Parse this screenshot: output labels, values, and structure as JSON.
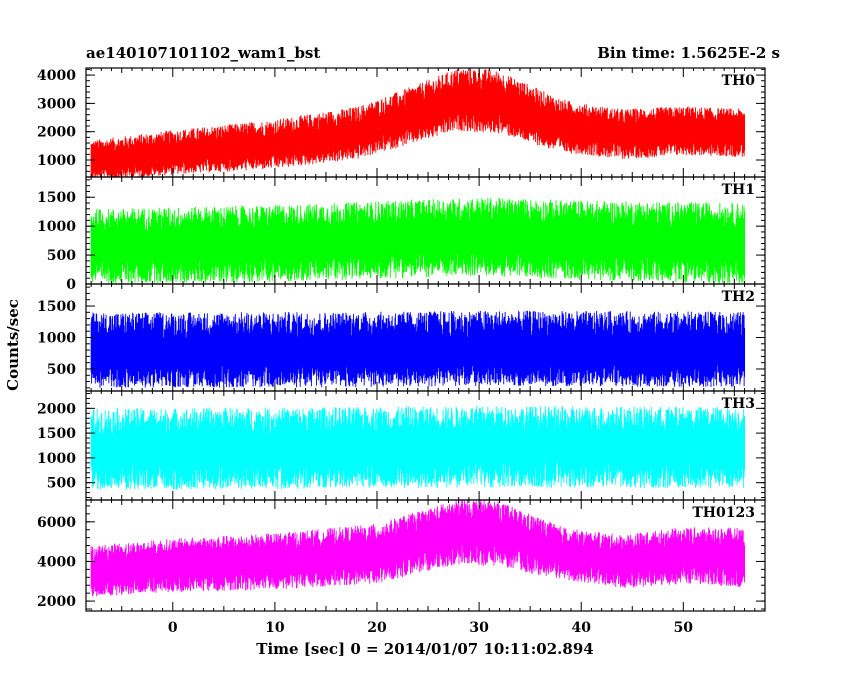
{
  "header": {
    "title": "ae140107101102_wam1_bst",
    "bin_time": "Bin time: 1.5625E-2 s"
  },
  "chart_data": {
    "type": "line",
    "title": "ae140107101102_wam1_bst",
    "xlabel": "Time [sec] 0 = 2014/01/07 10:11:02.894",
    "ylabel": "Counts/sec",
    "xlim": [
      -8.5,
      58
    ],
    "x_range": [
      -8,
      56
    ],
    "x_ticks": [
      0,
      10,
      20,
      30,
      40,
      50
    ],
    "grid": false,
    "panels": [
      {
        "name": "TH0",
        "color": "#ff0000",
        "ylim": [
          400,
          4250
        ],
        "y_ticks": [
          1000,
          2000,
          3000,
          4000
        ],
        "profile": [
          [
            -8,
            900
          ],
          [
            0,
            1200
          ],
          [
            10,
            1500
          ],
          [
            18,
            1900
          ],
          [
            24,
            2600
          ],
          [
            28,
            3100
          ],
          [
            32,
            3000
          ],
          [
            38,
            2200
          ],
          [
            44,
            1900
          ],
          [
            50,
            2000
          ],
          [
            56,
            1900
          ]
        ],
        "noise_up": [
          [
            -8,
            800
          ],
          [
            20,
            1000
          ],
          [
            30,
            1200
          ],
          [
            40,
            900
          ],
          [
            56,
            900
          ]
        ],
        "noise_down": [
          [
            -8,
            650
          ],
          [
            20,
            900
          ],
          [
            30,
            1100
          ],
          [
            40,
            900
          ],
          [
            56,
            800
          ]
        ]
      },
      {
        "name": "TH1",
        "color": "#00ff00",
        "ylim": [
          0,
          1850
        ],
        "y_ticks": [
          0,
          500,
          1000,
          1500
        ],
        "profile": [
          [
            -8,
            650
          ],
          [
            10,
            700
          ],
          [
            20,
            760
          ],
          [
            30,
            820
          ],
          [
            40,
            760
          ],
          [
            56,
            700
          ]
        ],
        "noise_up": [
          [
            -8,
            650
          ],
          [
            56,
            700
          ]
        ],
        "noise_down": [
          [
            -8,
            650
          ],
          [
            56,
            700
          ]
        ]
      },
      {
        "name": "TH2",
        "color": "#0000ff",
        "ylim": [
          150,
          1850
        ],
        "y_ticks": [
          500,
          1000,
          1500
        ],
        "profile": [
          [
            -8,
            750
          ],
          [
            20,
            760
          ],
          [
            30,
            780
          ],
          [
            56,
            760
          ]
        ],
        "noise_up": [
          [
            -8,
            650
          ],
          [
            56,
            650
          ]
        ],
        "noise_down": [
          [
            -8,
            550
          ],
          [
            56,
            550
          ]
        ]
      },
      {
        "name": "TH3",
        "color": "#00ffff",
        "ylim": [
          150,
          2350
        ],
        "y_ticks": [
          500,
          1000,
          1500,
          2000
        ],
        "profile": [
          [
            -8,
            1150
          ],
          [
            20,
            1180
          ],
          [
            30,
            1200
          ],
          [
            56,
            1180
          ]
        ],
        "noise_up": [
          [
            -8,
            850
          ],
          [
            56,
            850
          ]
        ],
        "noise_down": [
          [
            -8,
            800
          ],
          [
            56,
            800
          ]
        ]
      },
      {
        "name": "TH0123",
        "color": "#ff00ff",
        "ylim": [
          1500,
          7100
        ],
        "y_ticks": [
          2000,
          4000,
          6000
        ],
        "profile": [
          [
            -8,
            3500
          ],
          [
            0,
            3800
          ],
          [
            10,
            4000
          ],
          [
            20,
            4400
          ],
          [
            28,
            5500
          ],
          [
            32,
            5400
          ],
          [
            38,
            4400
          ],
          [
            44,
            4000
          ],
          [
            50,
            4300
          ],
          [
            56,
            4200
          ]
        ],
        "noise_up": [
          [
            -8,
            1300
          ],
          [
            20,
            1500
          ],
          [
            30,
            1700
          ],
          [
            40,
            1300
          ],
          [
            56,
            1500
          ]
        ],
        "noise_down": [
          [
            -8,
            1300
          ],
          [
            20,
            1500
          ],
          [
            30,
            1700
          ],
          [
            40,
            1300
          ],
          [
            56,
            1500
          ]
        ]
      }
    ]
  }
}
